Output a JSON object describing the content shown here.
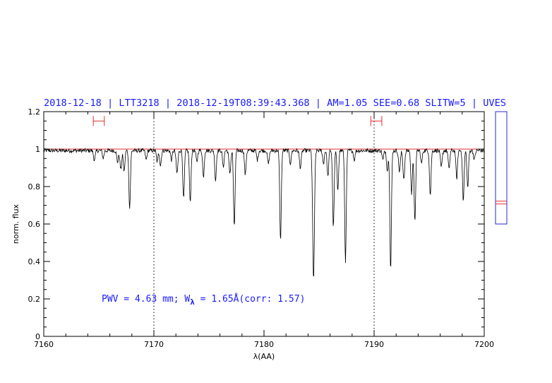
{
  "chart_data": {
    "type": "line",
    "title": "2018-12-18 | LTT3218 | 2018-12-19T08:39:43.368 | AM=1.05 SEE=0.68 SLITW=5 | UVES",
    "xlabel": "λ(AA)",
    "ylabel": "norm. flux",
    "xlim": [
      7160,
      7200
    ],
    "ylim": [
      0,
      1.2
    ],
    "x_ticks": [
      7160,
      7170,
      7180,
      7190,
      7200
    ],
    "x_tick_labels": [
      "7160",
      "7170",
      "7180",
      "7190",
      "7200"
    ],
    "y_ticks": [
      0,
      0.2,
      0.4,
      0.6,
      0.8,
      1,
      1.2
    ],
    "y_tick_labels": [
      "0",
      "0.2",
      "0.4",
      "0.6",
      "0.8",
      "1",
      "1.2"
    ],
    "grid": false,
    "reference_line": {
      "y": 1.0,
      "color": "#e03030"
    },
    "vertical_markers": [
      7170,
      7190
    ],
    "continuum_windows": [
      {
        "x1": 7164.5,
        "x2": 7165.5,
        "y": 1.15
      },
      {
        "x1": 7189.7,
        "x2": 7190.7,
        "y": 1.15
      }
    ],
    "annotation": {
      "prefix": "PWV = 4.63 mm; W",
      "sub": "λ",
      "suffix": " = 1.65Å(corr: 1.57)"
    },
    "colors": {
      "title": "#1a1aff",
      "annotation": "#1a1aff",
      "markers": "#e03030",
      "spectrum": "#000000",
      "side_box": "#2a2ad0"
    },
    "side_panel": {
      "ylim": [
        0,
        1.2
      ],
      "box_range": [
        0.6,
        1.2
      ],
      "marker_values": [
        0.707,
        0.722
      ]
    },
    "series": [
      {
        "continuum": 1.0,
        "absorption_lines": [
          [
            7164.6,
            0.05,
            0.08
          ],
          [
            7165.4,
            0.04,
            0.07
          ],
          [
            7166.7,
            0.06,
            0.08
          ],
          [
            7167.0,
            0.1,
            0.08
          ],
          [
            7167.3,
            0.11,
            0.07
          ],
          [
            7167.8,
            0.31,
            0.07
          ],
          [
            7169.3,
            0.05,
            0.07
          ],
          [
            7170.3,
            0.06,
            0.07
          ],
          [
            7170.6,
            0.08,
            0.07
          ],
          [
            7171.6,
            0.05,
            0.07
          ],
          [
            7172.1,
            0.12,
            0.08
          ],
          [
            7172.7,
            0.26,
            0.07
          ],
          [
            7173.3,
            0.28,
            0.07
          ],
          [
            7173.9,
            0.06,
            0.07
          ],
          [
            7174.5,
            0.14,
            0.07
          ],
          [
            7175.6,
            0.16,
            0.07
          ],
          [
            7176.3,
            0.09,
            0.07
          ],
          [
            7176.9,
            0.12,
            0.08
          ],
          [
            7177.3,
            0.41,
            0.07
          ],
          [
            7178.3,
            0.13,
            0.07
          ],
          [
            7179.4,
            0.05,
            0.07
          ],
          [
            7180.4,
            0.07,
            0.08
          ],
          [
            7181.5,
            0.48,
            0.07
          ],
          [
            7182.4,
            0.07,
            0.07
          ],
          [
            7183.3,
            0.09,
            0.08
          ],
          [
            7184.5,
            0.69,
            0.08
          ],
          [
            7185.4,
            0.07,
            0.07
          ],
          [
            7185.8,
            0.14,
            0.07
          ],
          [
            7186.3,
            0.41,
            0.07
          ],
          [
            7186.7,
            0.21,
            0.07
          ],
          [
            7187.4,
            0.59,
            0.07
          ],
          [
            7188.2,
            0.05,
            0.07
          ],
          [
            7190.8,
            0.05,
            0.07
          ],
          [
            7191.2,
            0.11,
            0.07
          ],
          [
            7191.5,
            0.64,
            0.07
          ],
          [
            7192.3,
            0.11,
            0.08
          ],
          [
            7192.7,
            0.15,
            0.08
          ],
          [
            7193.4,
            0.23,
            0.07
          ],
          [
            7193.7,
            0.38,
            0.07
          ],
          [
            7194.3,
            0.07,
            0.07
          ],
          [
            7195.1,
            0.24,
            0.07
          ],
          [
            7196.1,
            0.09,
            0.08
          ],
          [
            7196.8,
            0.1,
            0.07
          ],
          [
            7197.5,
            0.15,
            0.07
          ],
          [
            7198.1,
            0.27,
            0.07
          ],
          [
            7198.5,
            0.2,
            0.07
          ],
          [
            7199.1,
            0.05,
            0.07
          ]
        ]
      }
    ]
  }
}
